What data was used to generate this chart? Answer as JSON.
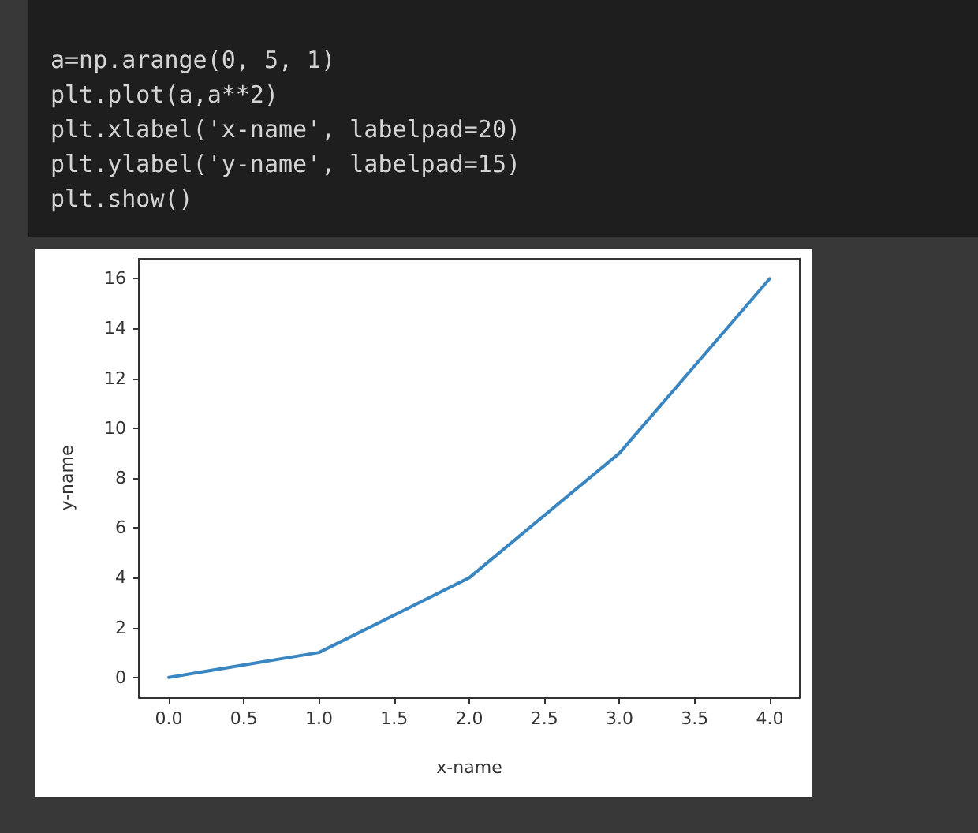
{
  "chart_data": {
    "type": "line",
    "xlabel": "x-name",
    "ylabel": "y-name",
    "annotations": [
      "a=np.arange(0, 5, 1)",
      "plt.plot(a,a**2)",
      "plt.xlabel('x-name', labelpad=20)",
      "plt.ylabel('y-name', labelpad=15)",
      "plt.show()"
    ],
    "x": [
      0,
      1,
      2,
      3,
      4
    ],
    "series": [
      {
        "color": "#3a86c0",
        "values": [
          0,
          1,
          4,
          9,
          16
        ]
      }
    ],
    "xlim": [
      -0.2,
      4.2
    ],
    "xticks": [
      {
        "value": 0,
        "label": "0.0"
      },
      {
        "value": 0.5,
        "label": "0.5"
      },
      {
        "value": 1,
        "label": "1.0"
      },
      {
        "value": 1.5,
        "label": "1.5"
      },
      {
        "value": 2,
        "label": "2.0"
      },
      {
        "value": 2.5,
        "label": "2.5"
      },
      {
        "value": 3,
        "label": "3.0"
      },
      {
        "value": 3.5,
        "label": "3.5"
      },
      {
        "value": 4,
        "label": "4.0"
      }
    ],
    "ylim": [
      -0.8,
      16.8
    ],
    "yticks": [
      0,
      2,
      4,
      6,
      8,
      10,
      12,
      14,
      16
    ],
    "grid": false,
    "marker": "none",
    "line_style": "solid"
  }
}
